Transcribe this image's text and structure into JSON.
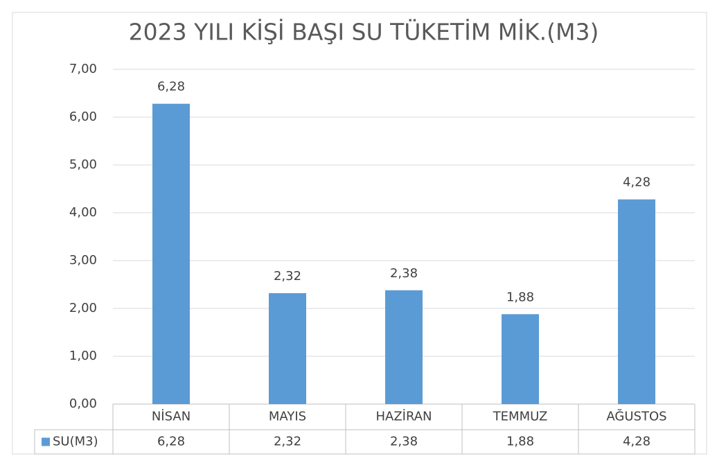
{
  "chart_data": {
    "type": "bar",
    "title": "2023 YILI KİŞİ BAŞI SU TÜKETİM MİK.(M3)",
    "categories": [
      "NİSAN",
      "MAYIS",
      "HAZİRAN",
      "TEMMUZ",
      "AĞUSTOS"
    ],
    "series": [
      {
        "name": "SU(M3)",
        "color": "#5b9bd5",
        "values": [
          6.28,
          2.32,
          2.38,
          1.88,
          4.28
        ],
        "value_labels": [
          "6,28",
          "2,32",
          "2,38",
          "1,88",
          "4,28"
        ]
      }
    ],
    "ylim": [
      0,
      7
    ],
    "yticks": [
      {
        "value": 0,
        "label": "0,00"
      },
      {
        "value": 1,
        "label": "1,00"
      },
      {
        "value": 2,
        "label": "2,00"
      },
      {
        "value": 3,
        "label": "3,00"
      },
      {
        "value": 4,
        "label": "4,00"
      },
      {
        "value": 5,
        "label": "5,00"
      },
      {
        "value": 6,
        "label": "6,00"
      },
      {
        "value": 7,
        "label": "7,00"
      }
    ],
    "grid": true
  }
}
